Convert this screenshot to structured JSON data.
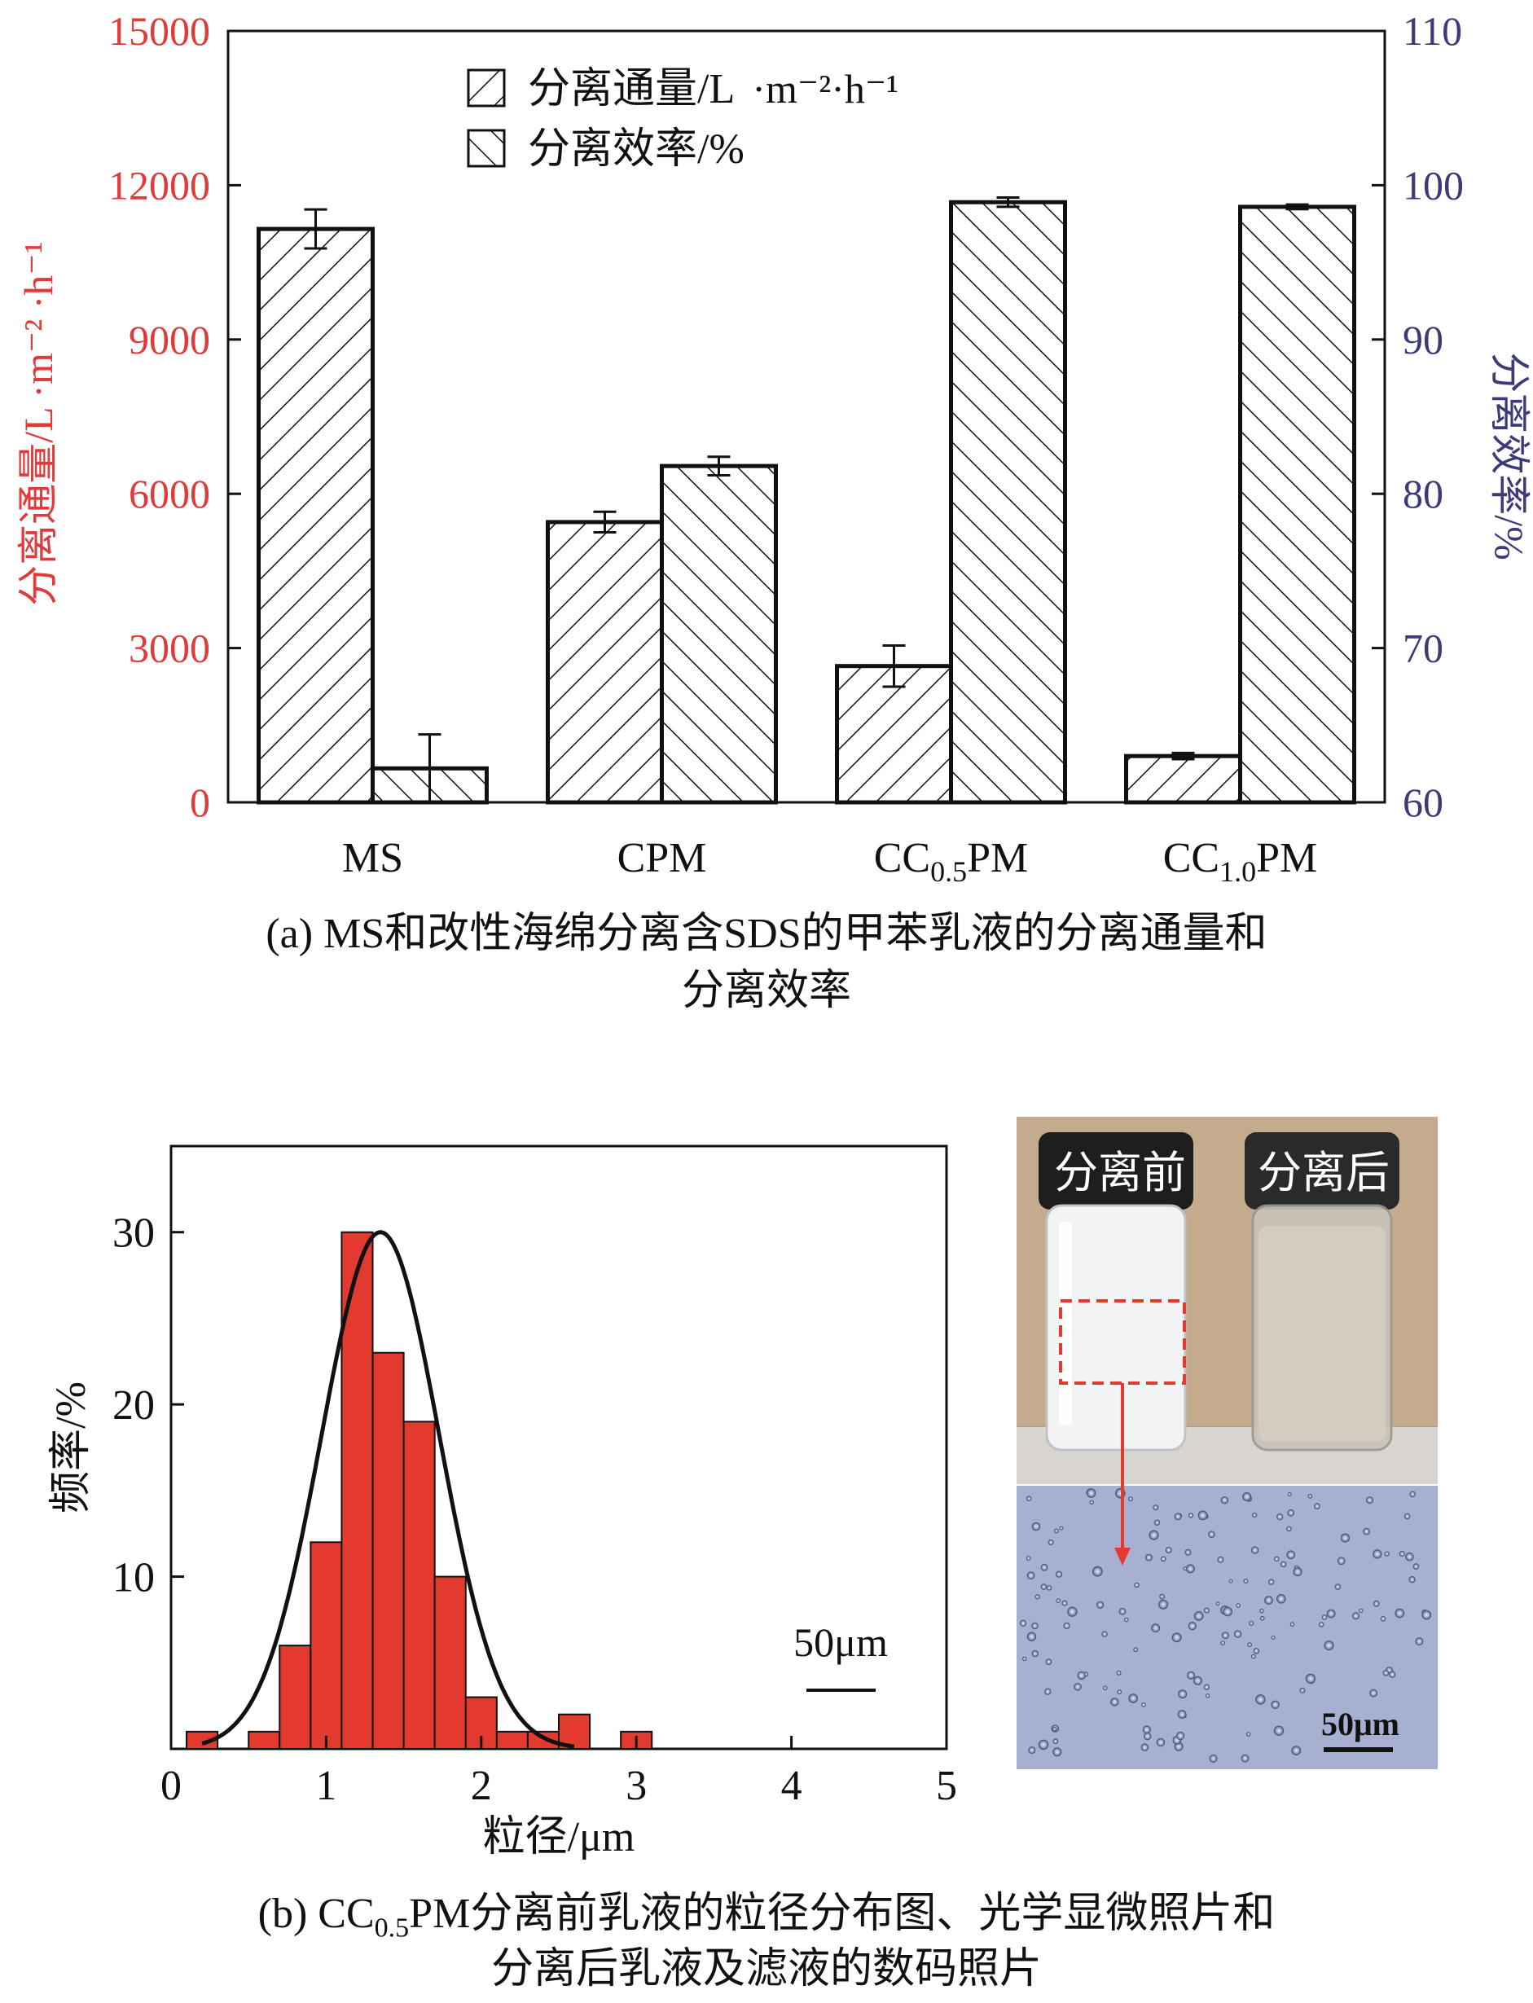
{
  "chart_data": [
    {
      "type": "bar",
      "categories": [
        "MS",
        "CPM",
        "CC0.5PM",
        "CC1.0PM"
      ],
      "categories_display": [
        {
          "base": "MS",
          "sub": "",
          "rest": ""
        },
        {
          "base": "CPM",
          "sub": "",
          "rest": ""
        },
        {
          "base": "CC",
          "sub": "0.5",
          "rest": "PM"
        },
        {
          "base": "CC",
          "sub": "1.0",
          "rest": "PM"
        }
      ],
      "series": [
        {
          "name": "分离通量/L ·m⁻² ·h⁻¹",
          "axis": "left",
          "values": [
            11150,
            5450,
            2650,
            900
          ],
          "errors": [
            380,
            200,
            400,
            60
          ],
          "hatch": "forward"
        },
        {
          "name": "分离效率/%",
          "axis": "right",
          "values": [
            62.2,
            81.8,
            98.9,
            98.6
          ],
          "errors": [
            2.2,
            0.6,
            0.3,
            0.15
          ],
          "hatch": "backward"
        }
      ],
      "yleft": {
        "label": "分离通量/L ·m⁻² ·h⁻¹",
        "ylim": [
          0,
          15000
        ],
        "ticks": [
          0,
          3000,
          6000,
          9000,
          12000,
          15000
        ],
        "color": "#e03a3a"
      },
      "yright": {
        "label": "分离效率/%",
        "ylim": [
          60,
          110
        ],
        "ticks": [
          60,
          70,
          80,
          90,
          100,
          110
        ],
        "color": "#3d3a7a"
      },
      "legend": {
        "position": "top-center",
        "entries": [
          {
            "text": "分离通量/L",
            "unit": "·m⁻²·h⁻¹"
          },
          {
            "text": "分离效率/%",
            "unit": ""
          }
        ]
      },
      "caption_line1": "(a) MS和改性海绵分离含SDS的甲苯乳液的分离通量和",
      "caption_line2": "分离效率"
    },
    {
      "type": "bar",
      "subtype": "histogram_with_normal_fit",
      "bin_width": 0.2,
      "bins": [
        {
          "x0": 0.1,
          "value": 1
        },
        {
          "x0": 0.5,
          "value": 1
        },
        {
          "x0": 0.7,
          "value": 6
        },
        {
          "x0": 0.9,
          "value": 12
        },
        {
          "x0": 1.1,
          "value": 30
        },
        {
          "x0": 1.3,
          "value": 23
        },
        {
          "x0": 1.5,
          "value": 19
        },
        {
          "x0": 1.7,
          "value": 10
        },
        {
          "x0": 1.9,
          "value": 3
        },
        {
          "x0": 2.1,
          "value": 1
        },
        {
          "x0": 2.3,
          "value": 1
        },
        {
          "x0": 2.5,
          "value": 2
        },
        {
          "x0": 2.9,
          "value": 1
        }
      ],
      "fit": {
        "type": "normal",
        "mean": 1.35,
        "sd": 0.38,
        "peak": 30
      },
      "bar_color": "#e23a2e",
      "xlim": [
        0,
        5
      ],
      "ylim": [
        0,
        35
      ],
      "xticks": [
        0,
        1,
        2,
        3,
        4,
        5
      ],
      "yticks": [
        10,
        20,
        30
      ],
      "xlabel": "粒径/μm",
      "ylabel": "频率/%",
      "scale_label": "50μm",
      "caption_line1": "(b) CC0.5PM分离前乳液的粒径分布图、光学显微照片和",
      "caption_line2": "分离后乳液及滤液的数码照片"
    }
  ],
  "photo": {
    "left_vial_label": "分离前",
    "right_vial_label": "分离后",
    "scale_label": "50μm",
    "background_color": "#b59a7c",
    "micrograph_color": "#a8b0d2",
    "annotation_color": "#e23a2e"
  },
  "caption_a": {
    "line1": "(a) MS和改性海绵分离含SDS的甲苯乳液的分离通量和",
    "line2": "分离效率"
  },
  "caption_b": {
    "prefix": "(b) CC",
    "sub": "0.5",
    "rest": "PM分离前乳液的粒径分布图、光学显微照片和",
    "line2": "分离后乳液及滤液的数码照片"
  }
}
